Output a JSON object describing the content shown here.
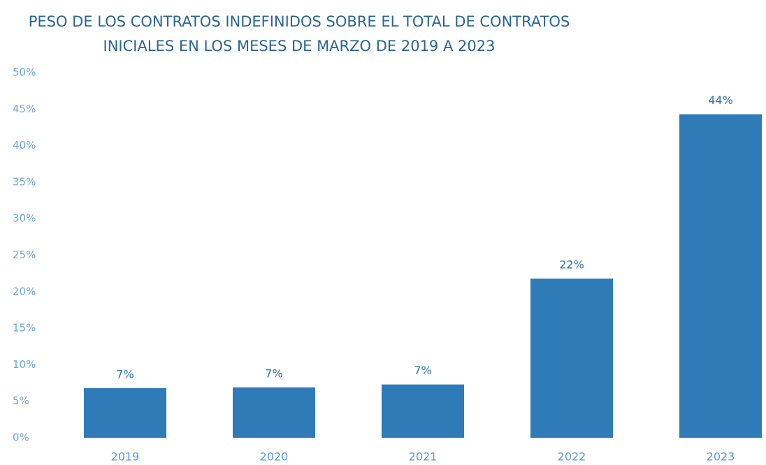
{
  "chart_data": {
    "type": "bar",
    "title": [
      "PESO DE LOS CONTRATOS INDEFINIDOS SOBRE EL TOTAL DE CONTRATOS",
      "INICIALES EN LOS MESES DE MARZO DE 2019 A 2023"
    ],
    "categories": [
      "2019",
      "2020",
      "2021",
      "2022",
      "2023"
    ],
    "values": [
      6.8,
      6.9,
      7.3,
      21.8,
      44.3
    ],
    "value_labels": [
      "7%",
      "7%",
      "7%",
      "22%",
      "44%"
    ],
    "color": "#2e7bb8",
    "ylim": [
      0,
      50
    ],
    "yticks": [
      {
        "value": 0,
        "label": "0%"
      },
      {
        "value": 5,
        "label": "5%"
      },
      {
        "value": 10,
        "label": "10%"
      },
      {
        "value": 15,
        "label": "15%"
      },
      {
        "value": 20,
        "label": "20%"
      },
      {
        "value": 25,
        "label": "25%"
      },
      {
        "value": 30,
        "label": "30%"
      },
      {
        "value": 35,
        "label": "35%"
      },
      {
        "value": 40,
        "label": "40%"
      },
      {
        "value": 45,
        "label": "45%"
      },
      {
        "value": 50,
        "label": "50%"
      }
    ],
    "grid": false
  }
}
